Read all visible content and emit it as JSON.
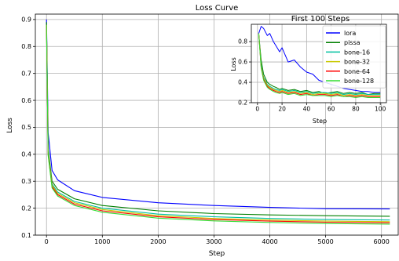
{
  "chart_data": [
    {
      "type": "line",
      "title": "Loss Curve",
      "xlabel": "Step",
      "ylabel": "Loss",
      "xlim": [
        -200,
        6300
      ],
      "ylim": [
        0.1,
        0.92
      ],
      "xticks": [
        0,
        1000,
        2000,
        3000,
        4000,
        5000,
        6000
      ],
      "yticks": [
        0.1,
        0.2,
        0.3,
        0.4,
        0.5,
        0.6,
        0.7,
        0.8,
        0.9
      ],
      "grid": true,
      "series": [
        {
          "name": "lora",
          "color": "#0000ff",
          "x": [
            0,
            30,
            100,
            200,
            500,
            1000,
            2000,
            3000,
            4000,
            5000,
            6150
          ],
          "y": [
            0.9,
            0.48,
            0.34,
            0.305,
            0.265,
            0.24,
            0.22,
            0.21,
            0.203,
            0.198,
            0.197
          ]
        },
        {
          "name": "pissa",
          "color": "#008000",
          "x": [
            0,
            30,
            100,
            200,
            500,
            1000,
            2000,
            3000,
            4000,
            5000,
            6150
          ],
          "y": [
            0.89,
            0.42,
            0.3,
            0.27,
            0.235,
            0.21,
            0.19,
            0.18,
            0.175,
            0.172,
            0.17
          ]
        },
        {
          "name": "bone-16",
          "color": "#00c0a0",
          "x": [
            0,
            30,
            100,
            200,
            500,
            1000,
            2000,
            3000,
            4000,
            5000,
            6150
          ],
          "y": [
            0.88,
            0.41,
            0.29,
            0.26,
            0.225,
            0.2,
            0.178,
            0.168,
            0.162,
            0.158,
            0.156
          ]
        },
        {
          "name": "bone-32",
          "color": "#c8c800",
          "x": [
            0,
            30,
            100,
            200,
            500,
            1000,
            2000,
            3000,
            4000,
            5000,
            6150
          ],
          "y": [
            0.88,
            0.405,
            0.285,
            0.255,
            0.22,
            0.195,
            0.172,
            0.162,
            0.156,
            0.152,
            0.15
          ]
        },
        {
          "name": "bone-64",
          "color": "#ff0000",
          "x": [
            0,
            30,
            100,
            200,
            500,
            1000,
            2000,
            3000,
            4000,
            5000,
            6150
          ],
          "y": [
            0.88,
            0.4,
            0.28,
            0.25,
            0.215,
            0.19,
            0.168,
            0.158,
            0.152,
            0.148,
            0.146
          ]
        },
        {
          "name": "bone-128",
          "color": "#33dd33",
          "x": [
            0,
            30,
            100,
            200,
            500,
            1000,
            2000,
            3000,
            4000,
            5000,
            6150
          ],
          "y": [
            0.88,
            0.395,
            0.275,
            0.245,
            0.21,
            0.185,
            0.163,
            0.153,
            0.147,
            0.143,
            0.141
          ]
        }
      ]
    },
    {
      "type": "line",
      "title": "First 100 Steps",
      "xlabel": "Step",
      "ylabel": "Loss",
      "xlim": [
        -5,
        105
      ],
      "ylim": [
        0.2,
        0.97
      ],
      "xticks": [
        0,
        20,
        40,
        60,
        80,
        100
      ],
      "yticks": [
        0.2,
        0.4,
        0.6,
        0.8
      ],
      "grid": true,
      "legend": "upper right",
      "series": [
        {
          "name": "lora",
          "color": "#0000ff",
          "x": [
            1,
            3,
            5,
            8,
            10,
            13,
            15,
            18,
            20,
            25,
            30,
            35,
            40,
            45,
            50,
            55,
            60,
            65,
            70,
            75,
            80,
            85,
            90,
            95,
            100
          ],
          "y": [
            0.88,
            0.95,
            0.93,
            0.86,
            0.88,
            0.8,
            0.76,
            0.7,
            0.74,
            0.6,
            0.62,
            0.55,
            0.5,
            0.48,
            0.42,
            0.4,
            0.38,
            0.36,
            0.34,
            0.33,
            0.32,
            0.31,
            0.31,
            0.3,
            0.3
          ]
        },
        {
          "name": "pissa",
          "color": "#008000",
          "x": [
            1,
            3,
            5,
            8,
            10,
            13,
            15,
            18,
            20,
            25,
            30,
            35,
            40,
            45,
            50,
            55,
            60,
            65,
            70,
            75,
            80,
            85,
            90,
            95,
            100
          ],
          "y": [
            0.88,
            0.62,
            0.48,
            0.4,
            0.38,
            0.36,
            0.35,
            0.33,
            0.34,
            0.32,
            0.33,
            0.31,
            0.32,
            0.3,
            0.31,
            0.29,
            0.3,
            0.31,
            0.29,
            0.3,
            0.29,
            0.3,
            0.28,
            0.29,
            0.29
          ]
        },
        {
          "name": "bone-16",
          "color": "#00c0a0",
          "x": [
            1,
            3,
            5,
            8,
            10,
            13,
            15,
            18,
            20,
            25,
            30,
            35,
            40,
            45,
            50,
            55,
            60,
            65,
            70,
            75,
            80,
            85,
            90,
            95,
            100
          ],
          "y": [
            0.88,
            0.58,
            0.45,
            0.38,
            0.36,
            0.34,
            0.33,
            0.32,
            0.33,
            0.31,
            0.32,
            0.3,
            0.31,
            0.29,
            0.3,
            0.3,
            0.29,
            0.3,
            0.28,
            0.29,
            0.28,
            0.29,
            0.28,
            0.28,
            0.28
          ]
        },
        {
          "name": "bone-32",
          "color": "#c8c800",
          "x": [
            1,
            3,
            5,
            8,
            10,
            13,
            15,
            18,
            20,
            25,
            30,
            35,
            40,
            45,
            50,
            55,
            60,
            65,
            70,
            75,
            80,
            85,
            90,
            95,
            100
          ],
          "y": [
            0.88,
            0.56,
            0.44,
            0.37,
            0.35,
            0.33,
            0.32,
            0.31,
            0.32,
            0.3,
            0.31,
            0.29,
            0.3,
            0.28,
            0.29,
            0.29,
            0.28,
            0.29,
            0.27,
            0.28,
            0.27,
            0.28,
            0.27,
            0.27,
            0.27
          ]
        },
        {
          "name": "bone-64",
          "color": "#ff0000",
          "x": [
            1,
            3,
            5,
            8,
            10,
            13,
            15,
            18,
            20,
            25,
            30,
            35,
            40,
            45,
            50,
            55,
            60,
            65,
            70,
            75,
            80,
            85,
            90,
            95,
            100
          ],
          "y": [
            0.88,
            0.55,
            0.43,
            0.36,
            0.34,
            0.32,
            0.31,
            0.3,
            0.31,
            0.29,
            0.3,
            0.28,
            0.29,
            0.27,
            0.28,
            0.28,
            0.27,
            0.28,
            0.26,
            0.27,
            0.26,
            0.27,
            0.26,
            0.26,
            0.26
          ]
        },
        {
          "name": "bone-128",
          "color": "#33dd33",
          "x": [
            1,
            3,
            5,
            8,
            10,
            13,
            15,
            18,
            20,
            25,
            30,
            35,
            40,
            45,
            50,
            55,
            60,
            65,
            70,
            75,
            80,
            85,
            90,
            95,
            100
          ],
          "y": [
            0.88,
            0.54,
            0.42,
            0.35,
            0.33,
            0.31,
            0.3,
            0.29,
            0.3,
            0.28,
            0.29,
            0.27,
            0.28,
            0.27,
            0.27,
            0.27,
            0.26,
            0.27,
            0.26,
            0.26,
            0.25,
            0.26,
            0.25,
            0.25,
            0.25
          ]
        }
      ]
    }
  ]
}
